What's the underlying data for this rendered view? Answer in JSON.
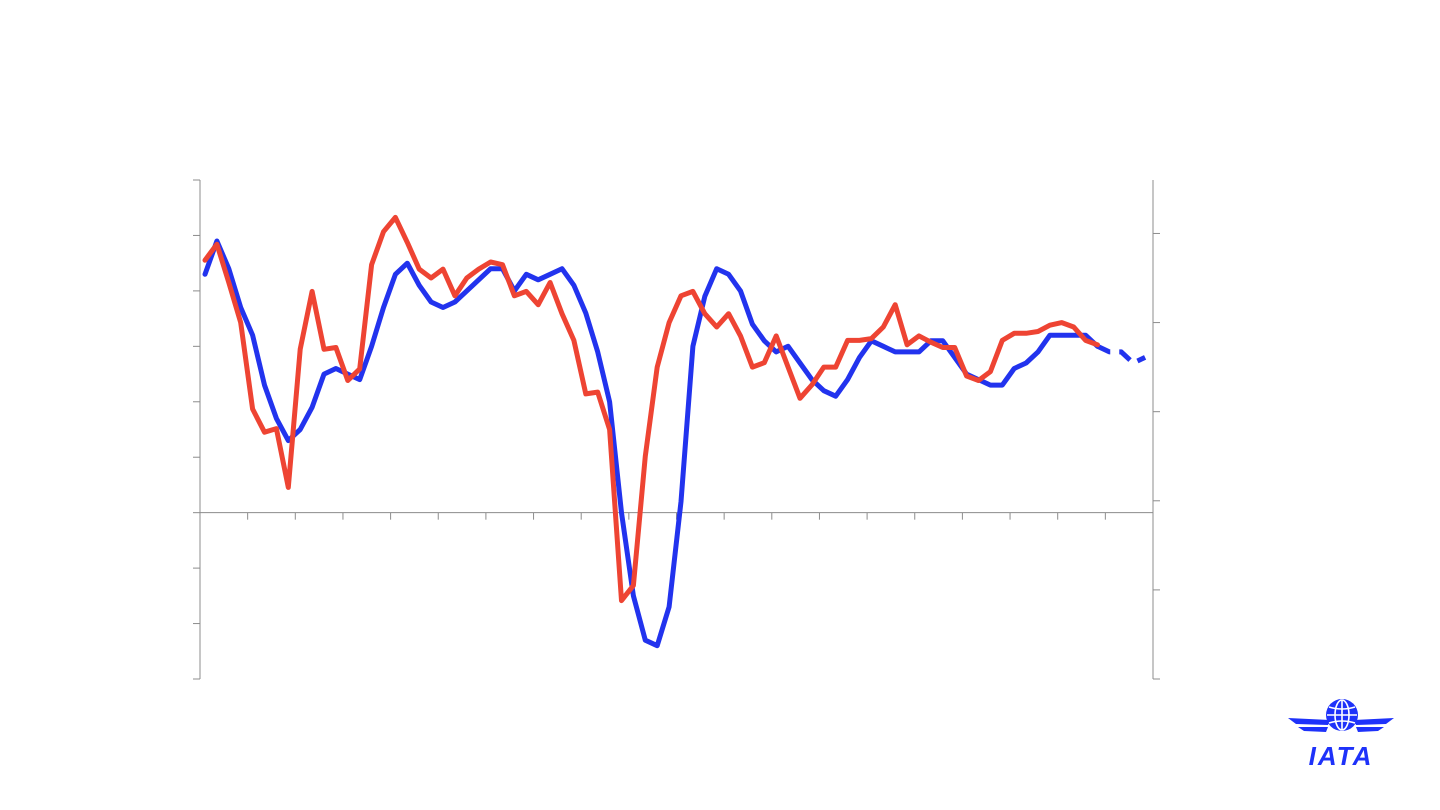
{
  "chart_data": {
    "type": "line",
    "title": "",
    "xlabel": "",
    "ylabel_left": "",
    "ylabel_right": "",
    "grid": false,
    "legend": "none",
    "y_left": {
      "range": [
        -3,
        6
      ],
      "ticks": [
        -3,
        -2,
        -1,
        0,
        1,
        2,
        3,
        4,
        5,
        6
      ],
      "scale": "relative"
    },
    "y_right": {
      "range": [
        -2,
        3.6
      ],
      "ticks": [
        -2,
        -1,
        0,
        1,
        2,
        3
      ],
      "scale": "relative"
    },
    "x": {
      "count_quarters": 80,
      "forecast_quarters": 4,
      "tick_every": 4
    },
    "series": [
      {
        "axis": "left",
        "color": "#2233ee",
        "values": [
          4.3,
          4.9,
          4.4,
          3.7,
          3.2,
          2.3,
          1.7,
          1.3,
          1.5,
          1.9,
          2.5,
          2.6,
          2.5,
          2.4,
          3.0,
          3.7,
          4.3,
          4.5,
          4.1,
          3.8,
          3.7,
          3.8,
          4.0,
          4.2,
          4.4,
          4.4,
          4.0,
          4.3,
          4.2,
          4.3,
          4.4,
          4.1,
          3.6,
          2.9,
          2.0,
          0.0,
          -1.5,
          -2.3,
          -2.4,
          -1.7,
          0.2,
          3.0,
          3.9,
          4.4,
          4.3,
          4.0,
          3.4,
          3.1,
          2.9,
          3.0,
          2.7,
          2.4,
          2.2,
          2.1,
          2.4,
          2.8,
          3.1,
          3.0,
          2.9,
          2.9,
          2.9,
          3.1,
          3.1,
          2.8,
          2.5,
          2.4,
          2.3,
          2.3,
          2.6,
          2.7,
          2.9,
          3.2,
          3.2,
          3.2,
          3.2,
          3.0,
          2.9,
          2.9,
          2.7,
          2.8
        ],
        "forecast_from_index": 75
      },
      {
        "axis": "right",
        "color": "#ee4433",
        "values": [
          2.7,
          2.88,
          2.45,
          2.0,
          1.03,
          0.77,
          0.81,
          0.15,
          1.7,
          2.35,
          1.7,
          1.72,
          1.35,
          1.48,
          2.65,
          3.02,
          3.18,
          2.9,
          2.6,
          2.5,
          2.6,
          2.3,
          2.5,
          2.6,
          2.68,
          2.65,
          2.3,
          2.35,
          2.2,
          2.45,
          2.1,
          1.8,
          1.2,
          1.22,
          0.8,
          -1.12,
          -0.95,
          0.5,
          1.5,
          2.0,
          2.3,
          2.35,
          2.1,
          1.95,
          2.1,
          1.85,
          1.5,
          1.55,
          1.85,
          1.5,
          1.15,
          1.3,
          1.5,
          1.5,
          1.8,
          1.8,
          1.82,
          1.95,
          2.2,
          1.75,
          1.85,
          1.78,
          1.72,
          1.72,
          1.4,
          1.35,
          1.45,
          1.8,
          1.88,
          1.88,
          1.9,
          1.97,
          2.0,
          1.95,
          1.8,
          1.75
        ]
      }
    ]
  },
  "logo": {
    "text": "IATA",
    "color": "#1e32fa"
  }
}
